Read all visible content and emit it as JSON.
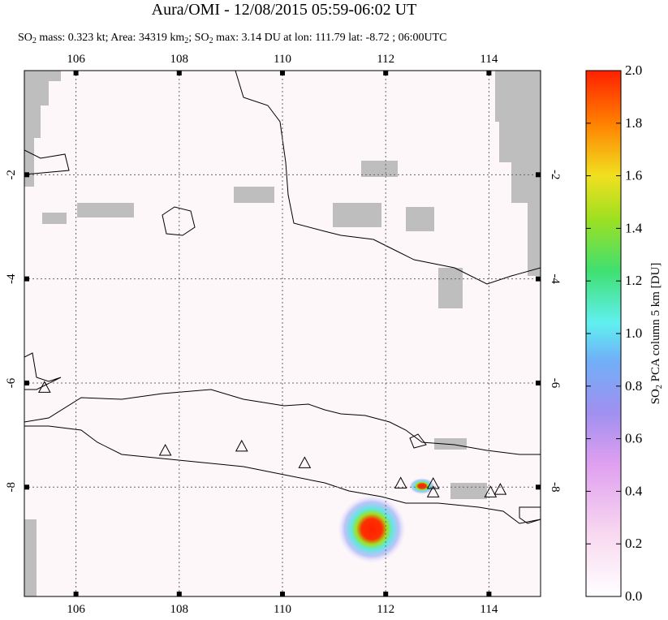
{
  "title": "Aura/OMI - 12/08/2015 05:59-06:02 UT",
  "subtitle": [
    "SO",
    "2",
    " mass: 0.323 kt; Area: 34319 km",
    "2",
    "; SO",
    "2",
    " max: 3.14 DU at lon: 111.79 lat: -8.72 ; 06:00UTC"
  ],
  "map": {
    "xlim": [
      105,
      115
    ],
    "ylim": [
      -10.1,
      0
    ],
    "xticks": [
      106,
      108,
      110,
      112,
      114
    ],
    "yticks": [
      -2,
      -4,
      -6,
      -8
    ],
    "grid": true,
    "volcanoes": [
      {
        "lon": 105.39,
        "lat": -6.1
      },
      {
        "lon": 107.73,
        "lat": -7.31
      },
      {
        "lon": 109.21,
        "lat": -7.23
      },
      {
        "lon": 110.43,
        "lat": -7.55
      },
      {
        "lon": 112.29,
        "lat": -7.94
      },
      {
        "lon": 112.92,
        "lat": -7.95
      },
      {
        "lon": 112.92,
        "lat": -8.11
      },
      {
        "lon": 114.03,
        "lat": -8.11
      },
      {
        "lon": 114.22,
        "lat": -8.06
      }
    ]
  },
  "colorbar": {
    "label": [
      "SO",
      "2",
      " PCA column 5 km [DU]"
    ],
    "lim": [
      0,
      2
    ],
    "ticks": [
      {
        "value": 0,
        "label": "0.0"
      },
      {
        "value": 0.2,
        "label": "0.2"
      },
      {
        "value": 0.4,
        "label": "0.4"
      },
      {
        "value": 0.6,
        "label": "0.6"
      },
      {
        "value": 0.8,
        "label": "0.8"
      },
      {
        "value": 1,
        "label": "1.0"
      },
      {
        "value": 1.2,
        "label": "1.2"
      },
      {
        "value": 1.4,
        "label": "1.4"
      },
      {
        "value": 1.6,
        "label": "1.6"
      },
      {
        "value": 1.8,
        "label": "1.8"
      },
      {
        "value": 2,
        "label": "2.0"
      }
    ]
  }
}
